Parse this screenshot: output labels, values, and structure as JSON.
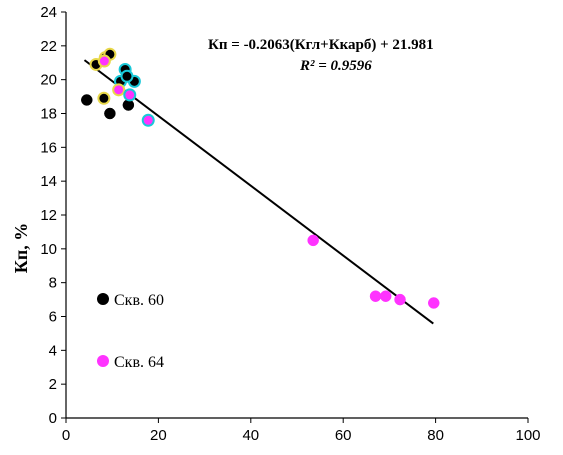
{
  "chart_data": {
    "type": "scatter",
    "title": "",
    "xlabel": "",
    "ylabel": "Кп, %",
    "xlim": [
      0,
      100
    ],
    "ylim": [
      0,
      24
    ],
    "xticks": [
      "0",
      "20",
      "40",
      "60",
      "80",
      "100"
    ],
    "yticks": [
      "0",
      "2",
      "4",
      "6",
      "8",
      "10",
      "12",
      "14",
      "16",
      "18",
      "20",
      "22",
      "24"
    ],
    "grid": false,
    "legend_position": "bottom-left",
    "equation": "Кп = -0.2063(Кгл+Ккарб) + 21.981",
    "r2_label": "R² = 0.9596",
    "trendline": {
      "slope": -0.2063,
      "intercept": 21.981,
      "x_range": [
        4,
        79.5
      ],
      "color": "#000000"
    },
    "series": [
      {
        "name": "Скв. 60",
        "color": "#000000",
        "points": [
          {
            "x": 4.5,
            "y": 18.8,
            "ring": ""
          },
          {
            "x": 9.5,
            "y": 18.0,
            "ring": ""
          },
          {
            "x": 13.5,
            "y": 18.5,
            "ring": ""
          },
          {
            "x": 8.2,
            "y": 18.9,
            "ring": "#e8d84a"
          },
          {
            "x": 6.5,
            "y": 20.9,
            "ring": "#e8d84a"
          },
          {
            "x": 8.5,
            "y": 21.3,
            "ring": "#e8d84a"
          },
          {
            "x": 9.5,
            "y": 21.5,
            "ring": "#e8d84a"
          },
          {
            "x": 12.8,
            "y": 20.6,
            "ring": "#19c8d8"
          },
          {
            "x": 11.8,
            "y": 19.9,
            "ring": "#19c8d8"
          },
          {
            "x": 14.8,
            "y": 19.9,
            "ring": "#19c8d8"
          },
          {
            "x": 13.2,
            "y": 20.2,
            "ring": "#19c8d8"
          }
        ]
      },
      {
        "name": "Скв. 64",
        "color": "#ff33ff",
        "points": [
          {
            "x": 8.3,
            "y": 21.1,
            "ring": "#e8d84a"
          },
          {
            "x": 11.4,
            "y": 19.4,
            "ring": "#e8d84a"
          },
          {
            "x": 13.8,
            "y": 19.1,
            "ring": "#19c8d8"
          },
          {
            "x": 17.8,
            "y": 17.6,
            "ring": "#19c8d8"
          },
          {
            "x": 53.5,
            "y": 10.5,
            "ring": ""
          },
          {
            "x": 67.0,
            "y": 7.2,
            "ring": ""
          },
          {
            "x": 69.2,
            "y": 7.2,
            "ring": ""
          },
          {
            "x": 72.3,
            "y": 7.0,
            "ring": ""
          },
          {
            "x": 79.6,
            "y": 6.8,
            "ring": ""
          }
        ]
      }
    ]
  }
}
